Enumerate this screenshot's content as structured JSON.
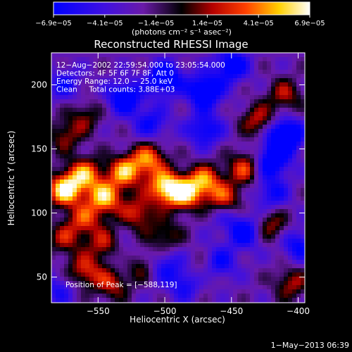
{
  "chart_data": {
    "type": "heatmap",
    "title": "Reconstructed RHESSI Image",
    "xlabel": "Heliocentric X (arcsec)",
    "ylabel": "Heliocentric Y (arcsec)",
    "xlim": [
      -585,
      -395
    ],
    "ylim": [
      30,
      225
    ],
    "x_ticks": [
      -550,
      -500,
      -450,
      -400
    ],
    "x_tick_labels": [
      "−550",
      "−500",
      "−450",
      "−400"
    ],
    "y_ticks": [
      50,
      100,
      150,
      200
    ],
    "y_tick_labels": [
      "50",
      "100",
      "150",
      "200"
    ],
    "colorbar": {
      "min": -6.9e-05,
      "max": 6.9e-05,
      "tick_labels": [
        "−6.9e−05",
        "−4.1e−05",
        "−1.4e−05",
        "1.4e−05",
        "4.1e−05",
        "6.9e−05"
      ],
      "unit_label": "(photons cm⁻² s⁻¹ asec⁻²)",
      "colormap": [
        "#0000ff",
        "#6a1aa8",
        "#000000",
        "#b40000",
        "#ff6a00",
        "#ffd800",
        "#ffffff"
      ]
    },
    "annotations": [
      "12−Aug−2002 22:59:54.000 to 23:05:54.000",
      "Detectors: 4F 5F 6F 7F 8F, Att 0",
      "Energy Range: 12.0 − 25.0 keV",
      "Clean     Total counts: 3.88E+03"
    ],
    "peak_label": "Position of Peak = [−588,119]",
    "peak_position": [
      -588,
      119
    ],
    "footer": "1−May−2013 06:39",
    "regions_note_free": true,
    "blobs": [
      {
        "x": -575,
        "y": 118,
        "v": 1.0
      },
      {
        "x": -560,
        "y": 130,
        "v": 0.75
      },
      {
        "x": -545,
        "y": 112,
        "v": 0.85
      },
      {
        "x": -530,
        "y": 132,
        "v": 0.8
      },
      {
        "x": -512,
        "y": 142,
        "v": 0.7
      },
      {
        "x": -500,
        "y": 120,
        "v": 0.9
      },
      {
        "x": -485,
        "y": 115,
        "v": 0.85
      },
      {
        "x": -470,
        "y": 125,
        "v": 0.7
      },
      {
        "x": -455,
        "y": 110,
        "v": 0.65
      },
      {
        "x": -440,
        "y": 135,
        "v": 0.6
      },
      {
        "x": -520,
        "y": 100,
        "v": 0.55
      },
      {
        "x": -560,
        "y": 95,
        "v": 0.55
      },
      {
        "x": -545,
        "y": 75,
        "v": 0.5
      },
      {
        "x": -575,
        "y": 80,
        "v": 0.45
      },
      {
        "x": -560,
        "y": 55,
        "v": 0.55
      },
      {
        "x": -540,
        "y": 45,
        "v": 0.5
      },
      {
        "x": -520,
        "y": 60,
        "v": 0.45
      },
      {
        "x": -500,
        "y": 82,
        "v": 0.4
      },
      {
        "x": -430,
        "y": 172,
        "v": 0.5
      },
      {
        "x": -410,
        "y": 192,
        "v": 0.45
      },
      {
        "x": -420,
        "y": 90,
        "v": 0.45
      },
      {
        "x": -405,
        "y": 45,
        "v": 0.45
      },
      {
        "x": -470,
        "y": 55,
        "v": 0.3
      },
      {
        "x": -560,
        "y": 175,
        "v": 0.35
      },
      {
        "x": -575,
        "y": 160,
        "v": 0.4
      },
      {
        "x": -530,
        "y": 190,
        "v": -0.7
      },
      {
        "x": -500,
        "y": 205,
        "v": -0.75
      },
      {
        "x": -470,
        "y": 195,
        "v": -0.8
      },
      {
        "x": -450,
        "y": 215,
        "v": -0.65
      },
      {
        "x": -410,
        "y": 160,
        "v": -1.0
      },
      {
        "x": -420,
        "y": 140,
        "v": -0.7
      },
      {
        "x": -470,
        "y": 165,
        "v": -0.55
      },
      {
        "x": -510,
        "y": 170,
        "v": -0.45
      },
      {
        "x": -575,
        "y": 200,
        "v": -0.4
      },
      {
        "x": -440,
        "y": 85,
        "v": -0.6
      },
      {
        "x": -460,
        "y": 60,
        "v": -0.55
      },
      {
        "x": -420,
        "y": 115,
        "v": -0.45
      },
      {
        "x": -400,
        "y": 75,
        "v": -0.5
      },
      {
        "x": -530,
        "y": 65,
        "v": -0.35
      },
      {
        "x": -485,
        "y": 45,
        "v": -0.45
      },
      {
        "x": -580,
        "y": 40,
        "v": -0.35
      },
      {
        "x": -500,
        "y": 60,
        "v": -0.4
      },
      {
        "x": -455,
        "y": 100,
        "v": -0.3
      }
    ]
  }
}
